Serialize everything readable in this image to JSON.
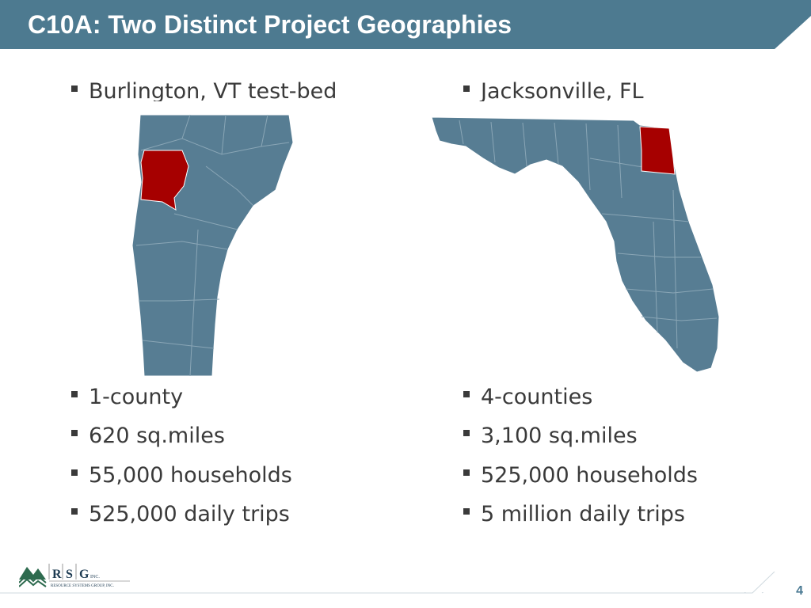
{
  "slide": {
    "title": "C10A: Two Distinct Project Geographies",
    "page_number": "4"
  },
  "left_column": {
    "heading": "Burlington, VT test-bed",
    "bullets": [
      "1-county",
      "620 sq.miles",
      "55,000 households",
      "525,000 daily trips"
    ]
  },
  "right_column": {
    "heading": "Jacksonville, FL",
    "bullets": [
      "4-counties",
      "3,100 sq.miles",
      "525,000 households",
      "5 million daily trips"
    ]
  },
  "logo": {
    "letters": [
      "R",
      "S",
      "G"
    ],
    "suffix": "INC.",
    "tagline": "RESOURCE SYSTEMS GROUP, INC."
  },
  "colors": {
    "title_bar": "#4d7a90",
    "map_fill": "#577d93",
    "highlight": "#a60000",
    "text": "#3a3a3a"
  }
}
